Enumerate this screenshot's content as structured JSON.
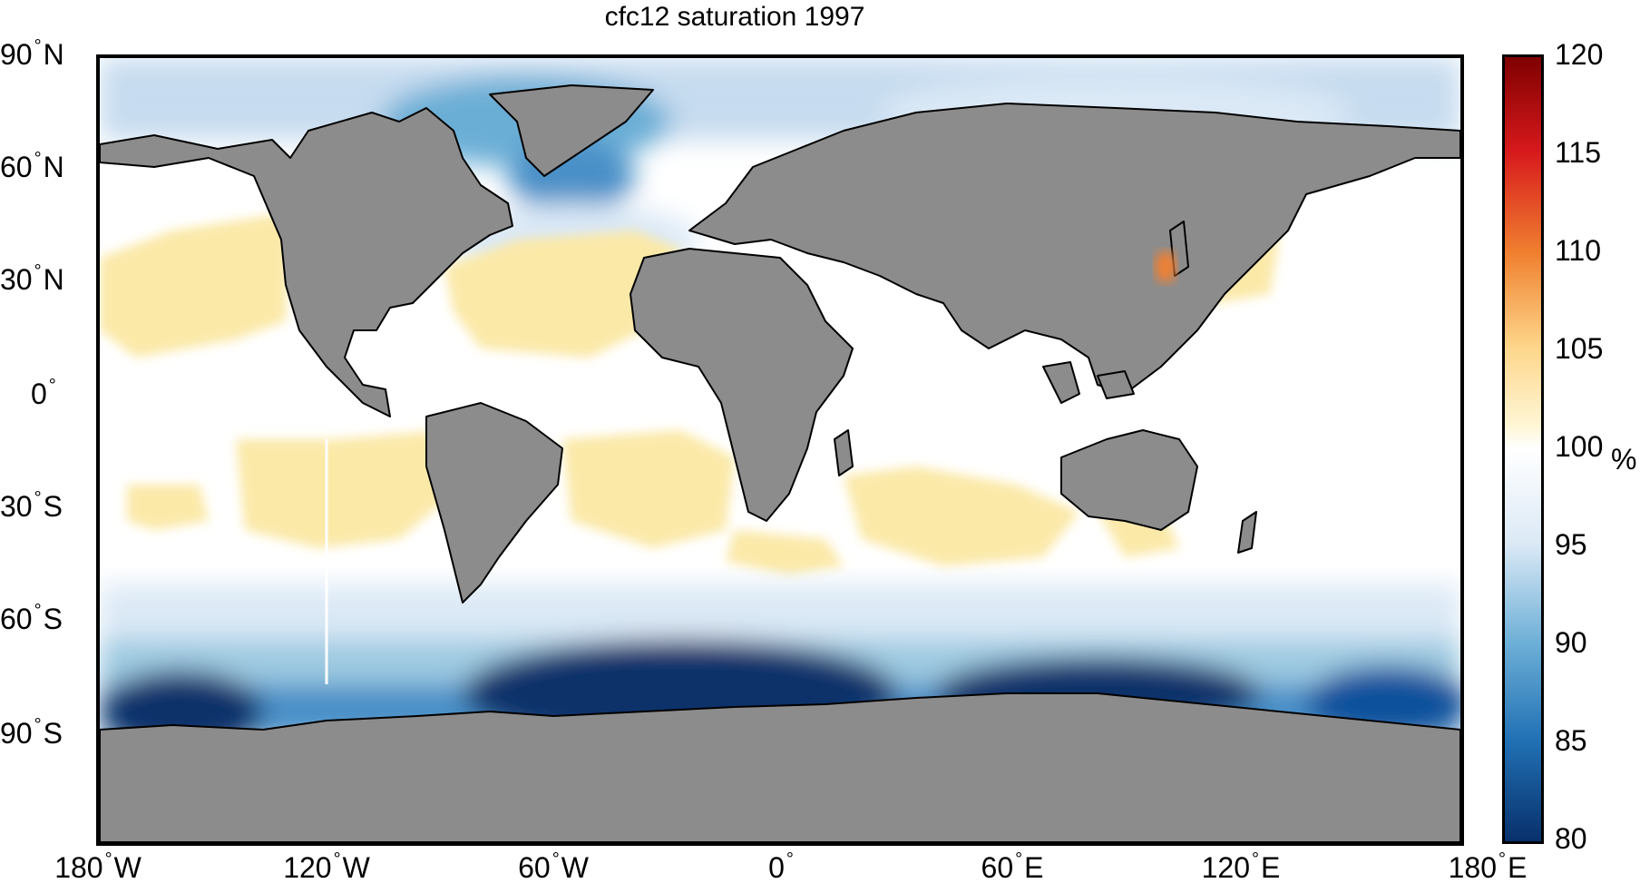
{
  "title": "cfc12 saturation 1997",
  "lat_ticks": [
    {
      "num": "90",
      "hem": "N"
    },
    {
      "num": "60",
      "hem": "N"
    },
    {
      "num": "30",
      "hem": "N"
    },
    {
      "num": "0",
      "hem": ""
    },
    {
      "num": "30",
      "hem": "S"
    },
    {
      "num": "60",
      "hem": "S"
    },
    {
      "num": "90",
      "hem": "S"
    }
  ],
  "lon_ticks": [
    {
      "num": "180",
      "hem": "W"
    },
    {
      "num": "120",
      "hem": "W"
    },
    {
      "num": "60",
      "hem": "W"
    },
    {
      "num": "0",
      "hem": ""
    },
    {
      "num": "60",
      "hem": "E"
    },
    {
      "num": "120",
      "hem": "E"
    },
    {
      "num": "180",
      "hem": "E"
    }
  ],
  "colorbar": {
    "min": 80,
    "max": 120,
    "ticks": [
      "120",
      "115",
      "110",
      "105",
      "100",
      "95",
      "90",
      "85",
      "80"
    ],
    "unit": "%",
    "colors": {
      "deep_blue": "#08306b",
      "mid_blue": "#4a90c8",
      "light_blue": "#dbe9f6",
      "white": "#ffffff",
      "light_yellow": "#fbe9a8",
      "orange": "#f08030",
      "red": "#d7191c",
      "dark_red": "#7f0000"
    }
  },
  "colors": {
    "land": "#8c8c8c",
    "coast": "#000000"
  }
}
